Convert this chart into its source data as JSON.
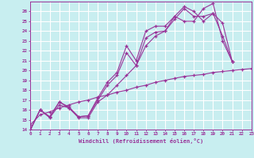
{
  "xlabel": "Windchill (Refroidissement éolien,°C)",
  "xlim": [
    0,
    23
  ],
  "ylim": [
    14,
    27
  ],
  "yticks": [
    14,
    15,
    16,
    17,
    18,
    19,
    20,
    21,
    22,
    23,
    24,
    25,
    26
  ],
  "xticks": [
    0,
    1,
    2,
    3,
    4,
    5,
    6,
    7,
    8,
    9,
    10,
    11,
    12,
    13,
    14,
    15,
    16,
    17,
    18,
    19,
    20,
    21,
    22,
    23
  ],
  "background_color": "#c8eef0",
  "grid_color": "#ffffff",
  "line_color": "#993399",
  "series": [
    {
      "x": [
        0,
        1,
        2,
        3,
        4,
        5,
        6,
        7,
        8,
        9,
        10,
        11,
        12,
        13,
        14,
        15,
        16,
        17,
        18,
        19,
        20,
        21,
        22,
        23
      ],
      "y": [
        14.5,
        15.5,
        15.8,
        16.2,
        16.5,
        16.8,
        17.0,
        17.3,
        17.5,
        17.8,
        18.0,
        18.3,
        18.5,
        18.8,
        19.0,
        19.2,
        19.4,
        19.5,
        19.6,
        19.8,
        19.9,
        20.0,
        20.1,
        20.2
      ]
    },
    {
      "x": [
        0,
        1,
        2,
        3,
        4,
        5,
        6,
        7,
        8,
        9,
        10,
        11,
        12,
        13,
        14,
        15,
        16,
        17,
        18,
        19,
        20,
        21,
        22,
        23
      ],
      "y": [
        14.0,
        16.0,
        15.2,
        16.5,
        16.2,
        15.2,
        15.2,
        16.8,
        17.5,
        18.5,
        19.5,
        20.5,
        22.5,
        23.5,
        24.0,
        25.5,
        26.5,
        26.0,
        25.0,
        25.8,
        23.5,
        20.9,
        null,
        null
      ]
    },
    {
      "x": [
        0,
        1,
        2,
        3,
        4,
        5,
        6,
        7,
        8,
        9,
        10,
        11,
        12,
        13,
        14,
        15,
        16,
        17,
        18,
        19,
        20,
        21,
        22,
        23
      ],
      "y": [
        14.0,
        16.0,
        15.3,
        16.8,
        16.3,
        15.3,
        15.4,
        17.0,
        18.5,
        19.5,
        21.8,
        20.5,
        23.3,
        23.9,
        24.0,
        25.2,
        26.3,
        25.5,
        25.5,
        25.8,
        24.8,
        20.9,
        null,
        null
      ]
    },
    {
      "x": [
        0,
        1,
        2,
        3,
        4,
        5,
        6,
        7,
        8,
        9,
        10,
        11,
        12,
        13,
        14,
        15,
        16,
        17,
        18,
        19,
        20,
        21,
        22,
        23
      ],
      "y": [
        14.0,
        16.0,
        15.3,
        16.8,
        16.2,
        15.3,
        15.4,
        17.2,
        18.8,
        19.8,
        22.5,
        21.0,
        24.0,
        24.5,
        24.5,
        25.5,
        25.0,
        25.0,
        26.3,
        26.8,
        23.0,
        20.9,
        null,
        null
      ]
    }
  ]
}
